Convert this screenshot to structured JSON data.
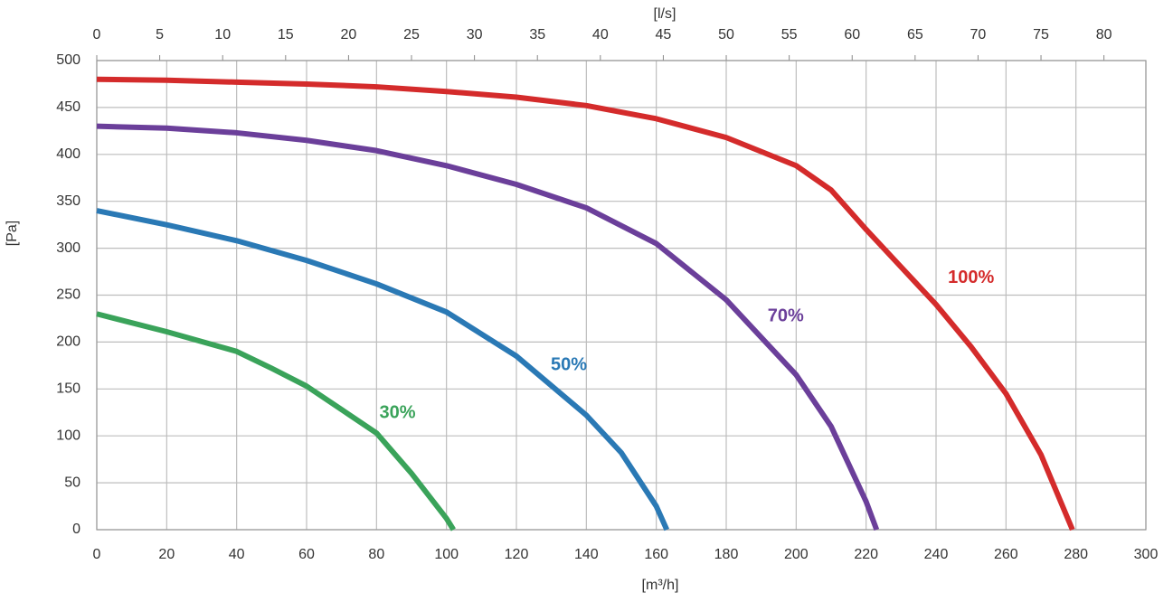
{
  "chart_data": {
    "type": "line",
    "xlabel": "[m³/h]",
    "ylabel": "[Pa]",
    "x2label": "[l/s]",
    "xlim": [
      0,
      300
    ],
    "xticks": [
      0,
      20,
      40,
      60,
      80,
      100,
      120,
      140,
      160,
      180,
      200,
      220,
      240,
      260,
      280,
      300
    ],
    "x2lim": [
      0,
      83.33
    ],
    "x2ticks": [
      0,
      5,
      10,
      15,
      20,
      25,
      30,
      35,
      40,
      45,
      50,
      55,
      60,
      65,
      70,
      75,
      80
    ],
    "ylim": [
      0,
      500
    ],
    "yticks": [
      0,
      50,
      100,
      150,
      200,
      250,
      300,
      350,
      400,
      450,
      500
    ],
    "grid": true,
    "series": [
      {
        "name": "30%",
        "color": "#3aa35a",
        "x": [
          0,
          20,
          40,
          50,
          60,
          80,
          90,
          100,
          102
        ],
        "values": [
          230,
          211,
          190,
          172,
          153,
          103,
          60,
          12,
          0
        ]
      },
      {
        "name": "50%",
        "color": "#2a79b5",
        "x": [
          0,
          20,
          40,
          60,
          80,
          100,
          120,
          140,
          150,
          160,
          163
        ],
        "values": [
          340,
          325,
          308,
          287,
          262,
          232,
          185,
          122,
          82,
          25,
          0
        ]
      },
      {
        "name": "70%",
        "color": "#6b3f9a",
        "x": [
          0,
          20,
          40,
          60,
          80,
          100,
          120,
          140,
          160,
          180,
          200,
          210,
          220,
          223
        ],
        "values": [
          430,
          428,
          423,
          415,
          404,
          388,
          368,
          343,
          305,
          245,
          165,
          110,
          30,
          0
        ]
      },
      {
        "name": "100%",
        "color": "#d42b2b",
        "x": [
          0,
          20,
          40,
          60,
          80,
          100,
          120,
          140,
          160,
          180,
          200,
          210,
          220,
          230,
          240,
          250,
          260,
          270,
          279
        ],
        "values": [
          480,
          479,
          477,
          475,
          472,
          467,
          461,
          452,
          438,
          418,
          388,
          362,
          320,
          280,
          240,
          195,
          145,
          80,
          0
        ]
      }
    ]
  }
}
